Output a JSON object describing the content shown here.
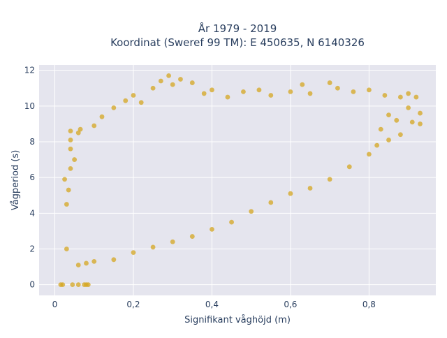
{
  "chart_data": {
    "type": "scatter",
    "title_line1": "År 1979 - 2019",
    "title_line2": "Koordinat (Sweref 99 TM): E 450635, N 6140326",
    "xlabel": "Signifikant våghöjd (m)",
    "ylabel": "Vågperiod (s)",
    "xlim": [
      -0.04,
      0.97
    ],
    "ylim": [
      -0.6,
      12.3
    ],
    "x_ticks": [
      0,
      0.2,
      0.4,
      0.6,
      0.8
    ],
    "x_tick_labels": [
      "0",
      "0,2",
      "0,4",
      "0,6",
      "0,8"
    ],
    "y_ticks": [
      0,
      2,
      4,
      6,
      8,
      10,
      12
    ],
    "y_tick_labels": [
      "0",
      "2",
      "4",
      "6",
      "8",
      "10",
      "12"
    ],
    "grid": true,
    "colors": {
      "background": "#ffffff",
      "plot_background": "#e5e5ee",
      "grid": "#ffffff",
      "marker": "#d4a520",
      "text": "#2a3f5f"
    },
    "marker_opacity": 0.75,
    "series": [
      {
        "points": [
          [
            0.015,
            0
          ],
          [
            0.02,
            0
          ],
          [
            0.045,
            0
          ],
          [
            0.06,
            0
          ],
          [
            0.075,
            0
          ],
          [
            0.08,
            0
          ],
          [
            0.085,
            0
          ],
          [
            0.03,
            2.0
          ],
          [
            0.03,
            4.5
          ],
          [
            0.025,
            5.9
          ],
          [
            0.04,
            6.5
          ],
          [
            0.04,
            7.6
          ],
          [
            0.04,
            8.1
          ],
          [
            0.04,
            8.6
          ],
          [
            0.06,
            8.5
          ],
          [
            0.065,
            8.7
          ],
          [
            0.05,
            7.0
          ],
          [
            0.035,
            5.3
          ],
          [
            0.1,
            8.9
          ],
          [
            0.12,
            9.4
          ],
          [
            0.15,
            9.9
          ],
          [
            0.18,
            10.3
          ],
          [
            0.2,
            10.6
          ],
          [
            0.22,
            10.2
          ],
          [
            0.25,
            11.0
          ],
          [
            0.27,
            11.4
          ],
          [
            0.29,
            11.7
          ],
          [
            0.3,
            11.2
          ],
          [
            0.32,
            11.5
          ],
          [
            0.35,
            11.3
          ],
          [
            0.38,
            10.7
          ],
          [
            0.4,
            10.9
          ],
          [
            0.44,
            10.5
          ],
          [
            0.48,
            10.8
          ],
          [
            0.52,
            10.9
          ],
          [
            0.55,
            10.6
          ],
          [
            0.6,
            10.8
          ],
          [
            0.63,
            11.2
          ],
          [
            0.65,
            10.7
          ],
          [
            0.7,
            11.3
          ],
          [
            0.72,
            11.0
          ],
          [
            0.76,
            10.8
          ],
          [
            0.8,
            10.9
          ],
          [
            0.84,
            10.6
          ],
          [
            0.88,
            10.5
          ],
          [
            0.9,
            10.7
          ],
          [
            0.92,
            10.5
          ],
          [
            0.93,
            9.6
          ],
          [
            0.9,
            9.9
          ],
          [
            0.85,
            9.5
          ],
          [
            0.87,
            9.2
          ],
          [
            0.83,
            8.7
          ],
          [
            0.91,
            9.1
          ],
          [
            0.06,
            1.1
          ],
          [
            0.08,
            1.2
          ],
          [
            0.1,
            1.3
          ],
          [
            0.15,
            1.4
          ],
          [
            0.2,
            1.8
          ],
          [
            0.25,
            2.1
          ],
          [
            0.3,
            2.4
          ],
          [
            0.35,
            2.7
          ],
          [
            0.4,
            3.1
          ],
          [
            0.45,
            3.5
          ],
          [
            0.5,
            4.1
          ],
          [
            0.55,
            4.6
          ],
          [
            0.6,
            5.1
          ],
          [
            0.65,
            5.4
          ],
          [
            0.7,
            5.9
          ],
          [
            0.75,
            6.6
          ],
          [
            0.8,
            7.3
          ],
          [
            0.82,
            7.8
          ],
          [
            0.85,
            8.1
          ],
          [
            0.88,
            8.4
          ],
          [
            0.93,
            9.0
          ]
        ]
      }
    ]
  }
}
